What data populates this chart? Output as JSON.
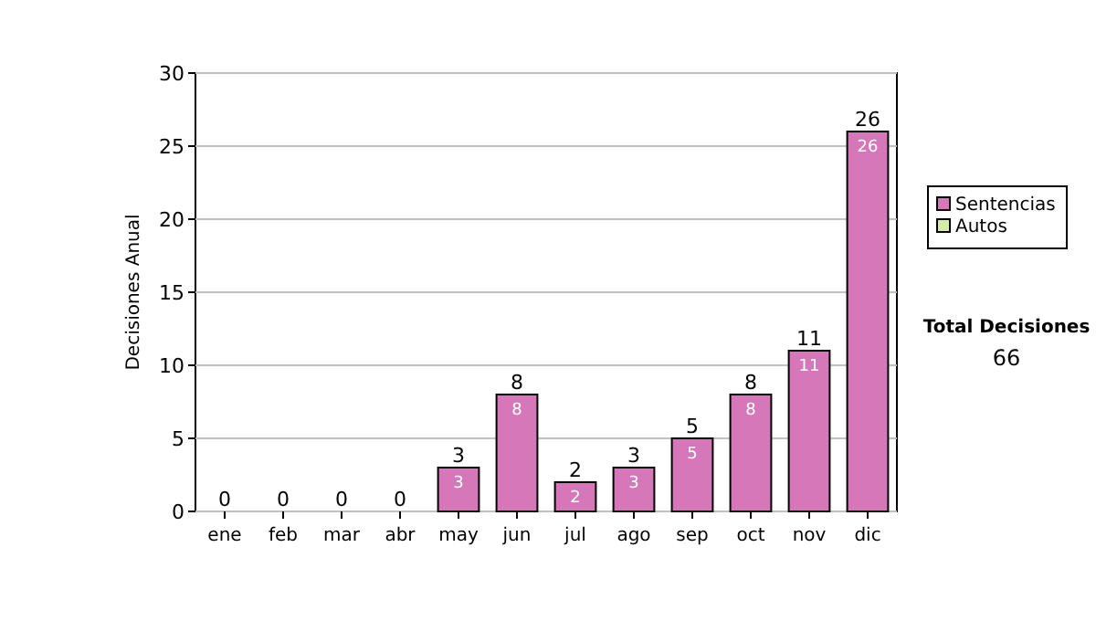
{
  "chart_data": {
    "type": "bar",
    "stacked": true,
    "ylabel": "Decisiones Anual",
    "categories": [
      "ene",
      "feb",
      "mar",
      "abr",
      "may",
      "jun",
      "jul",
      "ago",
      "sep",
      "oct",
      "nov",
      "dic"
    ],
    "series": [
      {
        "name": "Sentencias",
        "color": "#d677b9",
        "values": [
          0,
          0,
          0,
          0,
          3,
          8,
          2,
          3,
          5,
          8,
          11,
          26
        ],
        "value_labels": [
          null,
          null,
          null,
          null,
          "3",
          "8",
          "2",
          "3",
          "5",
          "8",
          "11",
          "26"
        ]
      },
      {
        "name": "Autos",
        "color": "#d4eca4",
        "values": [
          0,
          0,
          0,
          0,
          0,
          0,
          0,
          0,
          0,
          0,
          0,
          0
        ]
      }
    ],
    "totals": [
      "0",
      "0",
      "0",
      "0",
      "3",
      "8",
      "2",
      "3",
      "5",
      "8",
      "11",
      "26"
    ],
    "ylim": [
      0,
      30
    ],
    "yticks": [
      0,
      5,
      10,
      15,
      20,
      25,
      30
    ],
    "grid": "y",
    "legend": "right",
    "annotations": [
      "Total Decisiones",
      "66"
    ]
  }
}
